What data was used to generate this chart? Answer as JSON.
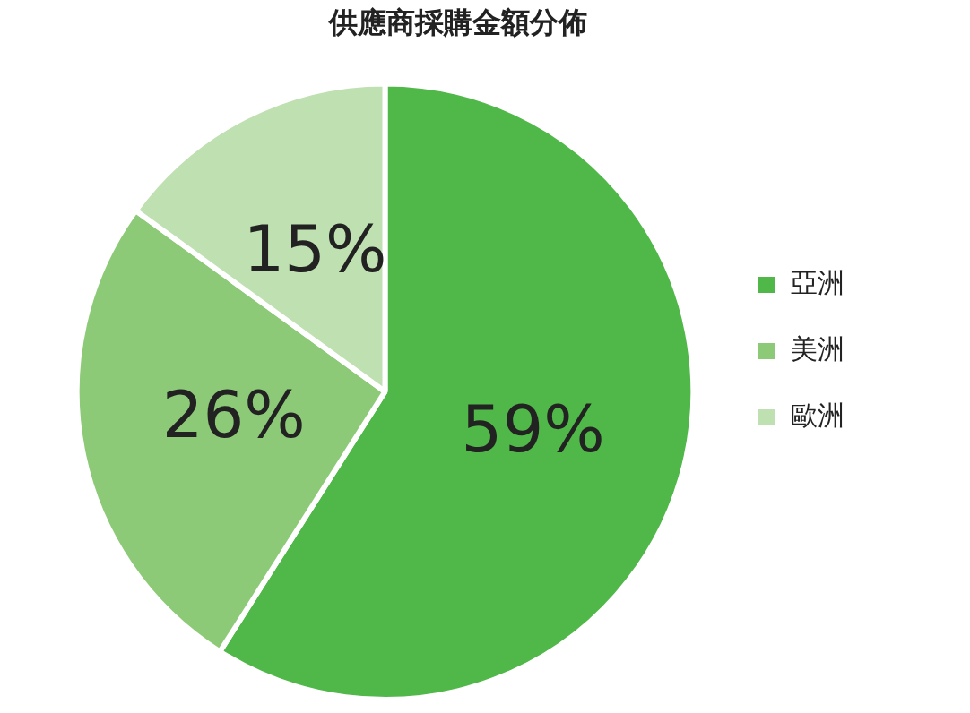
{
  "chart_data": {
    "type": "pie",
    "title": "供應商採購金額分佈",
    "categories": [
      "亞洲",
      "美洲",
      "歐洲"
    ],
    "values": [
      59,
      26,
      15
    ],
    "colors": [
      "#50b848",
      "#8dca78",
      "#bfe0b0"
    ],
    "value_labels": [
      "59%",
      "26%",
      "15%"
    ],
    "legend": "right"
  }
}
